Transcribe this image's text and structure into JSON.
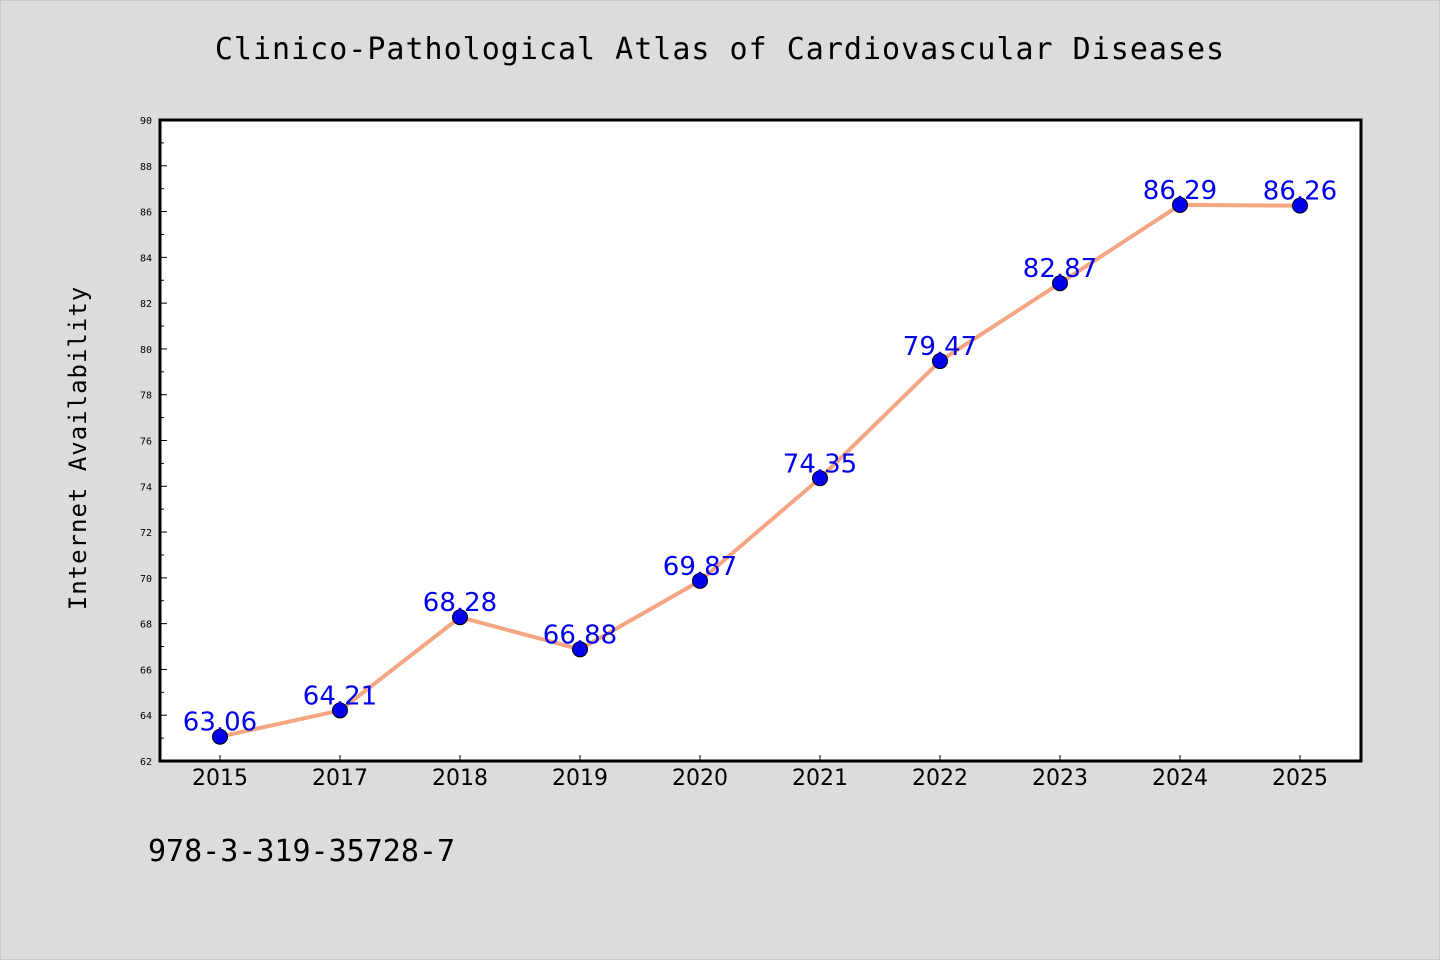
{
  "title": "Clinico-Pathological Atlas of Cardiovascular Diseases",
  "footer_text": "978-3-319-35728-7",
  "chart_data": {
    "type": "line",
    "title": "Clinico-Pathological Atlas of Cardiovascular Diseases",
    "xlabel": "",
    "ylabel": "Internet Availability",
    "categories": [
      "2015",
      "2017",
      "2018",
      "2019",
      "2020",
      "2021",
      "2022",
      "2023",
      "2024",
      "2025"
    ],
    "values": [
      63.06,
      64.21,
      68.28,
      66.88,
      69.87,
      74.35,
      79.47,
      82.87,
      86.29,
      86.26
    ],
    "data_labels": [
      "63.06",
      "64.21",
      "68.28",
      "66.88",
      "69.87",
      "74.35",
      "79.47",
      "82.87",
      "86.29",
      "86.26"
    ],
    "ylim": [
      62,
      90
    ],
    "yticks": [
      "62",
      "64",
      "66",
      "68",
      "70",
      "72",
      "74",
      "76",
      "78",
      "80",
      "82",
      "84",
      "86",
      "88",
      "90"
    ],
    "grid": false,
    "line_color": "#f4a582",
    "marker_color": "#0000ee",
    "label_color": "#0000ee"
  }
}
